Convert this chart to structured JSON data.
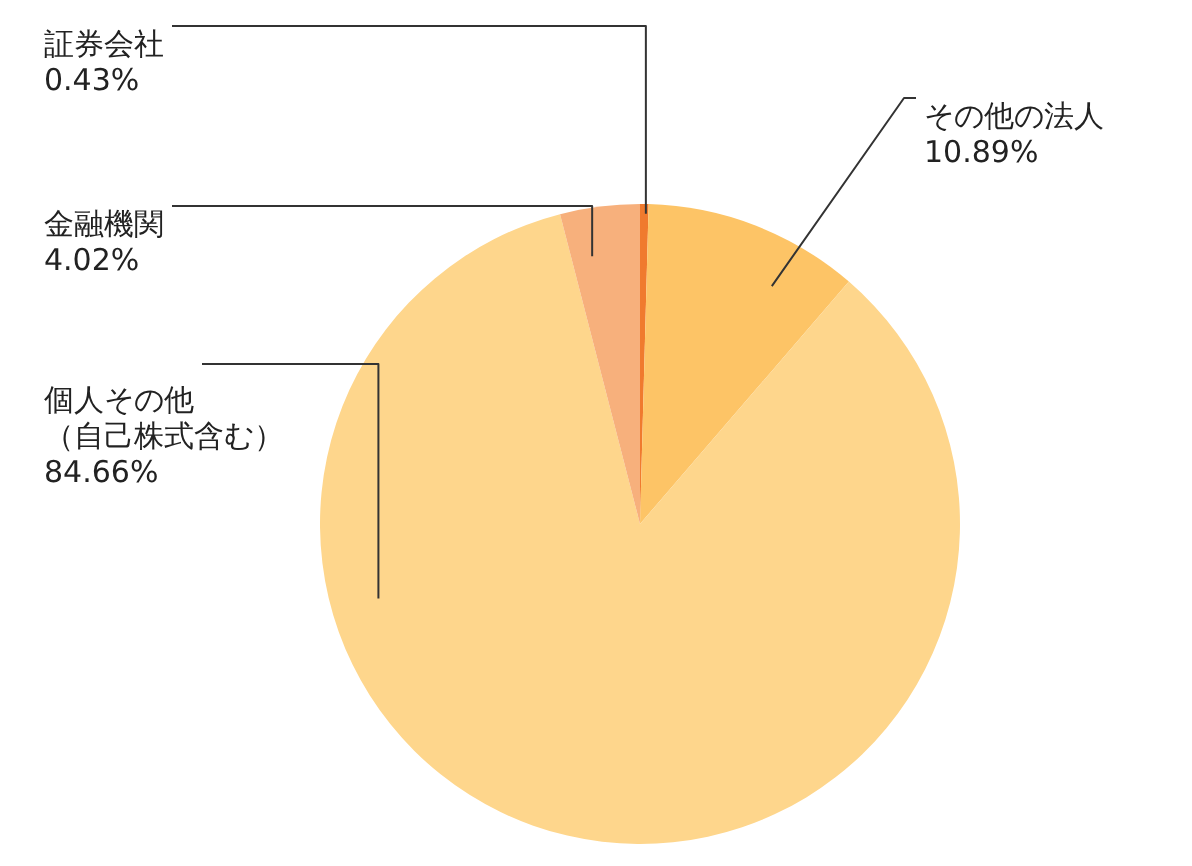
{
  "chart_data": {
    "type": "pie",
    "categories": [
      "証券会社",
      "その他の法人",
      "個人その他（自己株式含む）",
      "金融機関"
    ],
    "values": [
      0.43,
      10.89,
      84.66,
      4.02
    ],
    "value_labels": [
      "0.43%",
      "10.89%",
      "84.66%",
      "4.02%"
    ],
    "colors": [
      "#f07a2e",
      "#fdc466",
      "#fed68c",
      "#f7b07c"
    ]
  }
}
